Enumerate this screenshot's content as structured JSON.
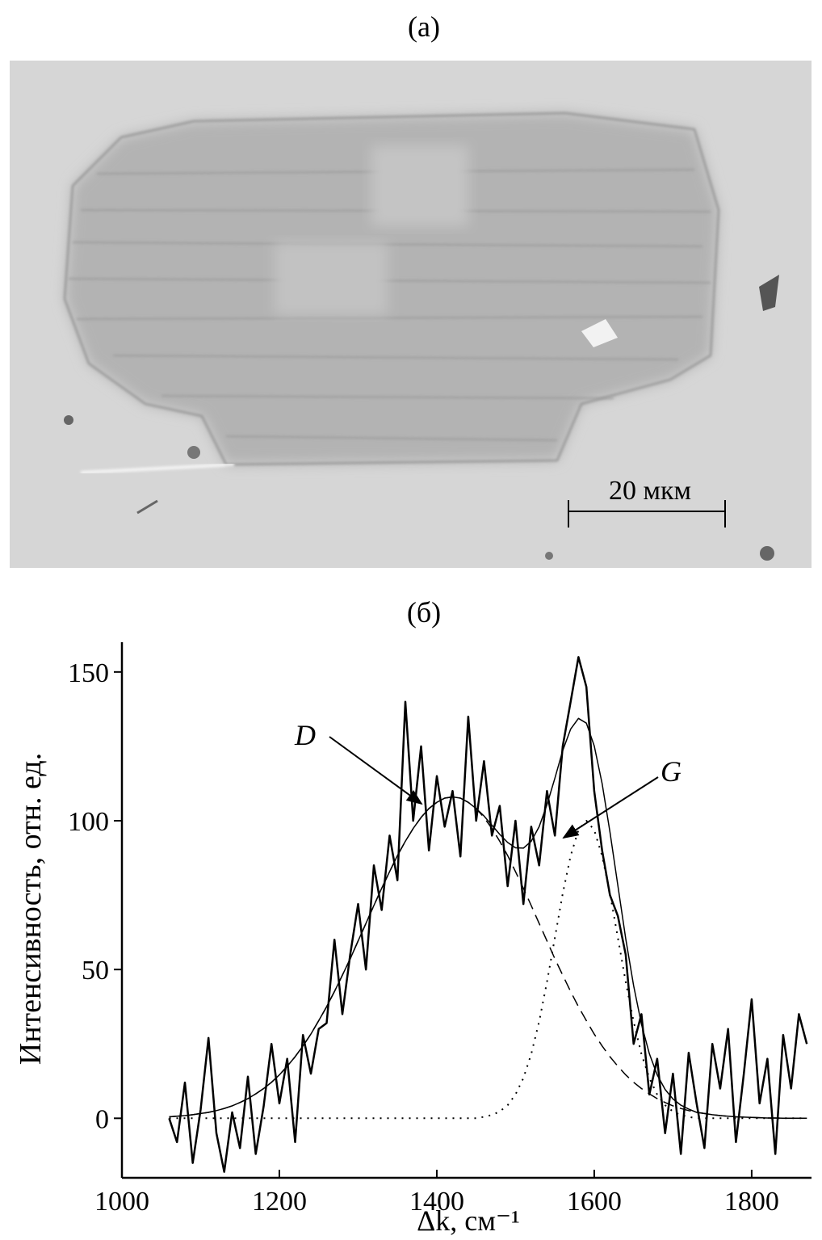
{
  "image": {
    "label": "(a)",
    "scale_bar": "20 мкм"
  },
  "chart_data": {
    "type": "line",
    "title": "(б)",
    "xlabel": "Δk, см⁻¹",
    "ylabel": "Интенсивность, отн. ед.",
    "annotations": [
      "D",
      "G"
    ],
    "x": [
      1060,
      1070,
      1080,
      1090,
      1100,
      1110,
      1120,
      1130,
      1140,
      1150,
      1160,
      1170,
      1180,
      1190,
      1200,
      1210,
      1220,
      1230,
      1240,
      1250,
      1260,
      1270,
      1280,
      1290,
      1300,
      1310,
      1320,
      1330,
      1340,
      1350,
      1360,
      1370,
      1380,
      1390,
      1400,
      1410,
      1420,
      1430,
      1440,
      1450,
      1460,
      1470,
      1480,
      1490,
      1500,
      1510,
      1520,
      1530,
      1540,
      1550,
      1560,
      1570,
      1580,
      1590,
      1600,
      1610,
      1620,
      1630,
      1640,
      1650,
      1660,
      1670,
      1680,
      1690,
      1700,
      1710,
      1720,
      1730,
      1740,
      1750,
      1760,
      1770,
      1780,
      1790,
      1800,
      1810,
      1820,
      1830,
      1840,
      1850,
      1860,
      1870
    ],
    "series": [
      {
        "color": "#000000",
        "style": "solid",
        "width": 2.5,
        "values": [
          0,
          -8,
          12,
          -15,
          3,
          27,
          -5,
          -18,
          2,
          -10,
          14,
          -12,
          4,
          25,
          5,
          20,
          -8,
          28,
          15,
          30,
          32,
          60,
          35,
          55,
          72,
          50,
          85,
          70,
          95,
          80,
          140,
          100,
          125,
          90,
          115,
          98,
          110,
          88,
          135,
          100,
          120,
          95,
          105,
          78,
          100,
          72,
          98,
          85,
          110,
          95,
          125,
          140,
          155,
          145,
          110,
          90,
          75,
          68,
          55,
          25,
          35,
          8,
          20,
          -5,
          15,
          -12,
          22,
          5,
          -10,
          25,
          10,
          30,
          -8,
          15,
          40,
          5,
          20,
          -12,
          28,
          10,
          35,
          25
        ]
      },
      {
        "color": "#000000",
        "style": "solid",
        "width": 1.5,
        "values": [
          0.5,
          0.7,
          0.9,
          1.2,
          1.6,
          2.0,
          2.6,
          3.3,
          4.2,
          5.3,
          6.6,
          8.2,
          10.0,
          12.1,
          14.6,
          17.5,
          20.7,
          24.3,
          28.3,
          32.8,
          37.5,
          42.6,
          48.1,
          53.6,
          59.6,
          65.5,
          71.5,
          77.3,
          82.9,
          88.3,
          93.1,
          97.4,
          101.1,
          104.1,
          106.2,
          107.6,
          108,
          107.6,
          106.2,
          104.1,
          101.6,
          98.5,
          95.4,
          92.7,
          90.9,
          90.8,
          93.1,
          98.0,
          105.4,
          114.3,
          123.6,
          130.8,
          134.4,
          132.8,
          125.2,
          112.5,
          96.2,
          78.2,
          60.4,
          44.6,
          31.6,
          21.7,
          14.6,
          9.7,
          6.5,
          4.4,
          3.1,
          2.0,
          1.6,
          1.2,
          0.9,
          0.7,
          0.5,
          0.4,
          0.3,
          0.2,
          0.1,
          0.1,
          0,
          0,
          0,
          0
        ]
      },
      {
        "color": "#000000",
        "style": "dashed",
        "width": 1.5,
        "values": [
          0.5,
          0.7,
          0.9,
          1.2,
          1.6,
          2.0,
          2.6,
          3.3,
          4.2,
          5.3,
          6.6,
          8.2,
          10.0,
          12.1,
          14.6,
          17.5,
          20.7,
          24.3,
          28.3,
          32.8,
          37.5,
          42.6,
          48.1,
          53.6,
          59.6,
          65.5,
          71.5,
          77.3,
          82.9,
          88.3,
          93.1,
          97.4,
          101.1,
          104.1,
          106.2,
          107.6,
          108,
          107.6,
          106.2,
          104.1,
          101.1,
          97.4,
          93.1,
          88.3,
          82.9,
          77.3,
          71.5,
          65.5,
          59.6,
          53.6,
          48.1,
          42.6,
          37.5,
          32.8,
          28.3,
          24.3,
          20.7,
          17.5,
          14.6,
          12.1,
          10.0,
          8.2,
          6.6,
          5.3,
          4.2,
          3.3,
          2.6,
          2.0,
          1.6,
          1.2,
          0.9,
          0.7,
          0.5,
          0.4,
          0.3,
          0.2,
          0.1,
          0.1,
          0,
          0,
          0,
          0
        ]
      },
      {
        "color": "#000000",
        "style": "dotted",
        "width": 2,
        "values": [
          0,
          0,
          0,
          0,
          0,
          0,
          0,
          0,
          0,
          0,
          0,
          0,
          0,
          0,
          0,
          0,
          0,
          0,
          0,
          0,
          0,
          0,
          0,
          0,
          0,
          0,
          0,
          0,
          0,
          0,
          0,
          0,
          0,
          0,
          0,
          0,
          0,
          0,
          0,
          0,
          0.5,
          1.1,
          2.3,
          4.4,
          8.0,
          13.5,
          21.6,
          32.5,
          45.8,
          60.7,
          75.5,
          88.2,
          96.9,
          100,
          96.9,
          88.2,
          75.5,
          60.7,
          45.8,
          32.5,
          21.6,
          13.5,
          8.0,
          4.4,
          2.3,
          1.1,
          0.5,
          0,
          0,
          0,
          0,
          0,
          0,
          0,
          0,
          0,
          0,
          0,
          0,
          0,
          0,
          0
        ]
      }
    ],
    "xlim": [
      1000,
      1876
    ],
    "xticks": [
      1000,
      1200,
      1400,
      1600,
      1800
    ],
    "ylim": [
      -20,
      160
    ],
    "yticks": [
      0,
      50,
      100,
      150
    ],
    "grid": false
  }
}
